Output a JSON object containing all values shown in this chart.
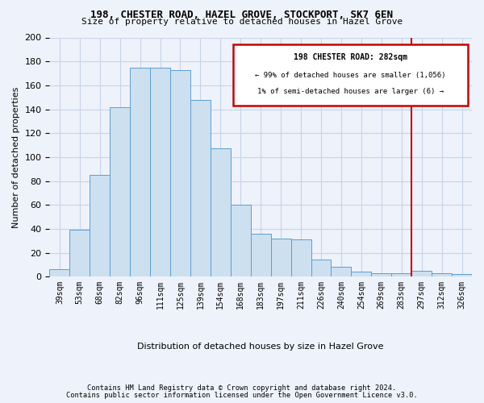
{
  "title1": "198, CHESTER ROAD, HAZEL GROVE, STOCKPORT, SK7 6EN",
  "title2": "Size of property relative to detached houses in Hazel Grove",
  "xlabel": "Distribution of detached houses by size in Hazel Grove",
  "ylabel": "Number of detached properties",
  "footer1": "Contains HM Land Registry data © Crown copyright and database right 2024.",
  "footer2": "Contains public sector information licensed under the Open Government Licence v3.0.",
  "bin_labels": [
    "39sqm",
    "53sqm",
    "68sqm",
    "82sqm",
    "96sqm",
    "111sqm",
    "125sqm",
    "139sqm",
    "154sqm",
    "168sqm",
    "183sqm",
    "197sqm",
    "211sqm",
    "226sqm",
    "240sqm",
    "254sqm",
    "269sqm",
    "283sqm",
    "297sqm",
    "312sqm",
    "326sqm"
  ],
  "bar_heights": [
    6,
    39,
    85,
    142,
    175,
    175,
    173,
    148,
    107,
    60,
    36,
    32,
    31,
    14,
    8,
    4,
    3,
    3,
    5,
    3,
    2
  ],
  "bar_color": "#cce0f0",
  "bar_edge_color": "#5a9fd4",
  "grid_color": "#c8d4e8",
  "background_color": "#eef2fa",
  "marker_bin_index": 17,
  "marker_label": "198 CHESTER ROAD: 282sqm",
  "marker_line1": "← 99% of detached houses are smaller (1,056)",
  "marker_line2": "1% of semi-detached houses are larger (6) →",
  "marker_color": "#cc0000",
  "vline_color": "#cc0000",
  "ylim": [
    0,
    200
  ],
  "yticks": [
    0,
    20,
    40,
    60,
    80,
    100,
    120,
    140,
    160,
    180,
    200
  ]
}
